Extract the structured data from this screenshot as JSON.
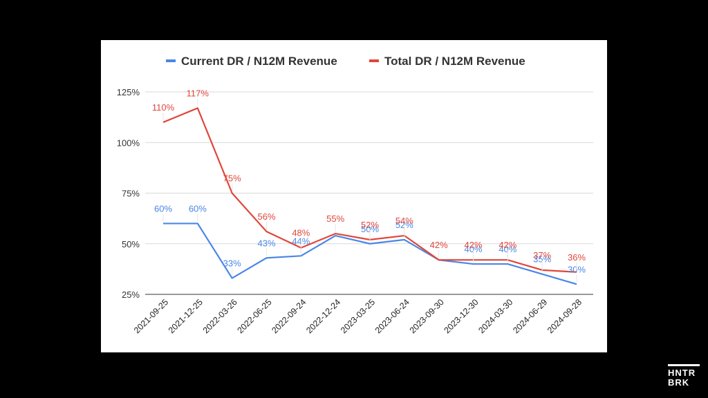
{
  "colors": {
    "current": "#4a86e8",
    "total": "#e0463a",
    "grid": "#d9d9d9"
  },
  "logo": {
    "line1": "HNTR",
    "line2": "BRK"
  },
  "chart_data": {
    "type": "line",
    "categories": [
      "2021-09-25",
      "2021-12-25",
      "2022-03-26",
      "2022-06-25",
      "2022-09-24",
      "2022-12-24",
      "2023-03-25",
      "2023-06-24",
      "2023-09-30",
      "2023-12-30",
      "2024-03-30",
      "2024-06-29",
      "2024-09-28"
    ],
    "series": [
      {
        "name": "Current DR / N12M Revenue",
        "color": "#4a86e8",
        "values": [
          60,
          60,
          33,
          43,
          44,
          54,
          50,
          52,
          42,
          40,
          40,
          35,
          30
        ],
        "labels": [
          "60%",
          "60%",
          "33%",
          "43%",
          "44%",
          "",
          "50%",
          "52%",
          "",
          "40%",
          "40%",
          "35%",
          "30%"
        ]
      },
      {
        "name": "Total DR / N12M Revenue",
        "color": "#e0463a",
        "values": [
          110,
          117,
          75,
          56,
          48,
          55,
          52,
          54,
          42,
          42,
          42,
          37,
          36
        ],
        "labels": [
          "110%",
          "117%",
          "75%",
          "56%",
          "48%",
          "55%",
          "52%",
          "54%",
          "42%",
          "42%",
          "42%",
          "37%",
          "36%"
        ]
      }
    ],
    "yticks": [
      "25%",
      "50%",
      "75%",
      "100%",
      "125%"
    ],
    "ylim": [
      25,
      125
    ],
    "grid": true,
    "legend": "top"
  }
}
